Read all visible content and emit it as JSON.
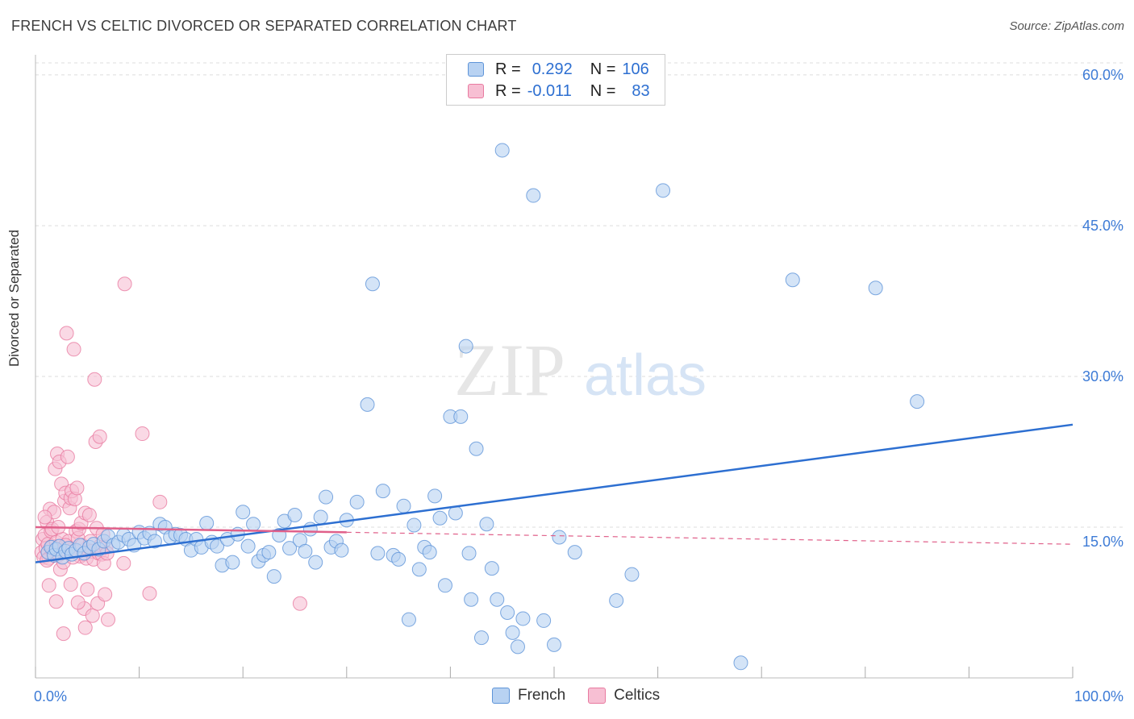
{
  "title": "FRENCH VS CELTIC DIVORCED OR SEPARATED CORRELATION CHART",
  "source": "Source: ZipAtlas.com",
  "watermark_a": "ZIP",
  "watermark_b": "atlas",
  "legend_top": {
    "rows": [
      {
        "r_label": "R =",
        "r_value": "0.292",
        "n_label": "N =",
        "n_value": "106"
      },
      {
        "r_label": "R =",
        "r_value": "-0.011",
        "n_label": "N =",
        "n_value": "83"
      }
    ]
  },
  "colors": {
    "french_fill": "#b8d2f2",
    "french_stroke": "#5e94d8",
    "french_line": "#2d6fd1",
    "celtic_fill": "#f7bfd3",
    "celtic_stroke": "#e87aa0",
    "celtic_line": "#e0608a",
    "axis_label": "#3d7bd6",
    "grid": "#dddddd"
  },
  "chart_data": {
    "type": "scatter",
    "ylabel": "Divorced or Separated",
    "xlim": [
      0,
      100
    ],
    "ylim": [
      0,
      62
    ],
    "x_tick_labels": [
      {
        "v": 0,
        "label": "0.0%"
      },
      {
        "v": 100,
        "label": "100.0%"
      }
    ],
    "y_ticks": [
      {
        "v": 15,
        "label": "15.0%"
      },
      {
        "v": 30,
        "label": "30.0%"
      },
      {
        "v": 45,
        "label": "45.0%"
      },
      {
        "v": 60,
        "label": "60.0%"
      }
    ],
    "x_minor_ticks": [
      0,
      10,
      20,
      30,
      40,
      50,
      60,
      70,
      80,
      90,
      100
    ],
    "series": [
      {
        "name": "French",
        "trend": {
          "x0": 0,
          "y0": 11.5,
          "x1": 100,
          "y1": 25.2,
          "dashed_from": null
        },
        "points": [
          [
            1.2,
            12.5
          ],
          [
            1.5,
            13.0
          ],
          [
            1.8,
            12.2
          ],
          [
            2.0,
            12.8
          ],
          [
            2.3,
            13.1
          ],
          [
            2.6,
            12.0
          ],
          [
            2.9,
            12.6
          ],
          [
            3.2,
            12.9
          ],
          [
            3.5,
            12.3
          ],
          [
            3.9,
            12.7
          ],
          [
            4.3,
            13.2
          ],
          [
            4.7,
            12.4
          ],
          [
            5.2,
            13.0
          ],
          [
            5.6,
            13.3
          ],
          [
            6.1,
            12.8
          ],
          [
            6.6,
            13.6
          ],
          [
            7.0,
            14.1
          ],
          [
            7.5,
            13.2
          ],
          [
            8.0,
            13.5
          ],
          [
            8.5,
            14.2
          ],
          [
            9.0,
            13.8
          ],
          [
            9.5,
            13.2
          ],
          [
            10.0,
            14.5
          ],
          [
            10.5,
            13.9
          ],
          [
            11.0,
            14.4
          ],
          [
            11.5,
            13.6
          ],
          [
            12.0,
            15.3
          ],
          [
            12.5,
            15.0
          ],
          [
            13.0,
            14.0
          ],
          [
            13.5,
            14.3
          ],
          [
            14.0,
            14.2
          ],
          [
            14.5,
            13.8
          ],
          [
            15.0,
            12.7
          ],
          [
            15.5,
            13.8
          ],
          [
            16.0,
            13.0
          ],
          [
            16.5,
            15.4
          ],
          [
            17.0,
            13.5
          ],
          [
            17.5,
            13.1
          ],
          [
            18.0,
            11.2
          ],
          [
            18.5,
            13.8
          ],
          [
            19.0,
            11.5
          ],
          [
            19.5,
            14.3
          ],
          [
            20.0,
            16.5
          ],
          [
            20.5,
            13.1
          ],
          [
            21.0,
            15.3
          ],
          [
            21.5,
            11.6
          ],
          [
            22.0,
            12.2
          ],
          [
            22.5,
            12.5
          ],
          [
            23.0,
            10.1
          ],
          [
            23.5,
            14.2
          ],
          [
            24.0,
            15.6
          ],
          [
            24.5,
            12.9
          ],
          [
            25.0,
            16.2
          ],
          [
            25.5,
            13.7
          ],
          [
            26.0,
            12.6
          ],
          [
            26.5,
            14.8
          ],
          [
            27.0,
            11.5
          ],
          [
            27.5,
            16.0
          ],
          [
            28.0,
            18.0
          ],
          [
            28.5,
            13.0
          ],
          [
            29.0,
            13.6
          ],
          [
            29.5,
            12.7
          ],
          [
            30.0,
            15.7
          ],
          [
            31.0,
            17.5
          ],
          [
            32.0,
            27.2
          ],
          [
            32.5,
            39.2
          ],
          [
            33.0,
            12.4
          ],
          [
            33.5,
            18.6
          ],
          [
            34.5,
            12.2
          ],
          [
            35.0,
            11.8
          ],
          [
            35.5,
            17.1
          ],
          [
            36.0,
            5.8
          ],
          [
            36.5,
            15.2
          ],
          [
            37.0,
            10.8
          ],
          [
            37.5,
            13.0
          ],
          [
            38.0,
            12.5
          ],
          [
            38.5,
            18.1
          ],
          [
            39.0,
            15.9
          ],
          [
            39.5,
            9.2
          ],
          [
            40.0,
            26.0
          ],
          [
            40.5,
            16.4
          ],
          [
            41.0,
            26.0
          ],
          [
            41.5,
            33.0
          ],
          [
            41.8,
            12.4
          ],
          [
            42.0,
            7.8
          ],
          [
            42.5,
            22.8
          ],
          [
            43.0,
            4.0
          ],
          [
            43.5,
            15.3
          ],
          [
            44.0,
            10.9
          ],
          [
            44.5,
            7.8
          ],
          [
            45.0,
            52.5
          ],
          [
            45.5,
            6.5
          ],
          [
            46.0,
            4.5
          ],
          [
            46.5,
            3.1
          ],
          [
            47.0,
            5.9
          ],
          [
            48.0,
            48.0
          ],
          [
            49.0,
            5.7
          ],
          [
            50.0,
            3.3
          ],
          [
            50.5,
            14.0
          ],
          [
            52.0,
            12.5
          ],
          [
            56.0,
            7.7
          ],
          [
            57.5,
            10.3
          ],
          [
            60.5,
            48.5
          ],
          [
            68.0,
            1.5
          ],
          [
            73.0,
            39.6
          ],
          [
            81.0,
            38.8
          ],
          [
            85.0,
            27.5
          ]
        ]
      },
      {
        "name": "Celtics",
        "trend": {
          "x0": 0,
          "y0": 15.0,
          "x1": 100,
          "y1": 13.3,
          "dashed_from": 30
        },
        "points": [
          [
            0.6,
            12.5
          ],
          [
            0.7,
            13.8
          ],
          [
            0.8,
            12.0
          ],
          [
            0.9,
            14.2
          ],
          [
            1.0,
            12.9
          ],
          [
            1.1,
            15.5
          ],
          [
            1.2,
            13.3
          ],
          [
            1.3,
            11.9
          ],
          [
            1.4,
            16.8
          ],
          [
            1.5,
            14.6
          ],
          [
            1.6,
            13.1
          ],
          [
            1.7,
            12.4
          ],
          [
            1.8,
            16.5
          ],
          [
            1.9,
            20.8
          ],
          [
            2.0,
            13.5
          ],
          [
            2.1,
            22.3
          ],
          [
            2.2,
            12.2
          ],
          [
            2.3,
            21.5
          ],
          [
            2.4,
            10.8
          ],
          [
            2.5,
            19.3
          ],
          [
            2.6,
            13.8
          ],
          [
            2.7,
            11.5
          ],
          [
            2.8,
            17.6
          ],
          [
            2.9,
            18.4
          ],
          [
            3.0,
            34.3
          ],
          [
            3.1,
            22.0
          ],
          [
            3.2,
            13.6
          ],
          [
            3.3,
            16.9
          ],
          [
            3.4,
            17.9
          ],
          [
            3.5,
            18.6
          ],
          [
            3.6,
            12.8
          ],
          [
            3.7,
            32.7
          ],
          [
            3.8,
            17.8
          ],
          [
            3.9,
            14.6
          ],
          [
            4.0,
            18.9
          ],
          [
            4.1,
            13.9
          ],
          [
            4.2,
            14.8
          ],
          [
            4.3,
            12.1
          ],
          [
            4.4,
            15.4
          ],
          [
            4.5,
            13.2
          ],
          [
            4.6,
            12.3
          ],
          [
            4.7,
            6.9
          ],
          [
            4.8,
            16.4
          ],
          [
            4.9,
            11.9
          ],
          [
            5.0,
            8.8
          ],
          [
            5.1,
            12.7
          ],
          [
            5.2,
            16.2
          ],
          [
            5.3,
            13.6
          ],
          [
            5.4,
            12.6
          ],
          [
            5.5,
            6.2
          ],
          [
            5.6,
            11.8
          ],
          [
            5.7,
            29.7
          ],
          [
            5.8,
            23.5
          ],
          [
            5.9,
            14.9
          ],
          [
            6.0,
            7.4
          ],
          [
            6.1,
            12.4
          ],
          [
            6.2,
            24.0
          ],
          [
            6.3,
            13.2
          ],
          [
            6.4,
            12.3
          ],
          [
            6.5,
            14.3
          ],
          [
            6.6,
            11.4
          ],
          [
            6.7,
            8.3
          ],
          [
            6.8,
            13.0
          ],
          [
            6.9,
            12.4
          ],
          [
            7.0,
            5.8
          ],
          [
            8.5,
            11.4
          ],
          [
            8.6,
            39.2
          ],
          [
            10.3,
            24.3
          ],
          [
            11.0,
            8.4
          ],
          [
            12.0,
            17.5
          ],
          [
            25.5,
            7.4
          ],
          [
            0.9,
            16.0
          ],
          [
            1.3,
            9.2
          ],
          [
            2.0,
            7.6
          ],
          [
            2.7,
            4.4
          ],
          [
            3.4,
            9.3
          ],
          [
            4.1,
            7.5
          ],
          [
            4.8,
            5.0
          ],
          [
            1.6,
            14.8
          ],
          [
            2.2,
            15.0
          ],
          [
            1.1,
            11.7
          ],
          [
            2.9,
            13.2
          ],
          [
            3.6,
            12.0
          ]
        ]
      }
    ]
  }
}
